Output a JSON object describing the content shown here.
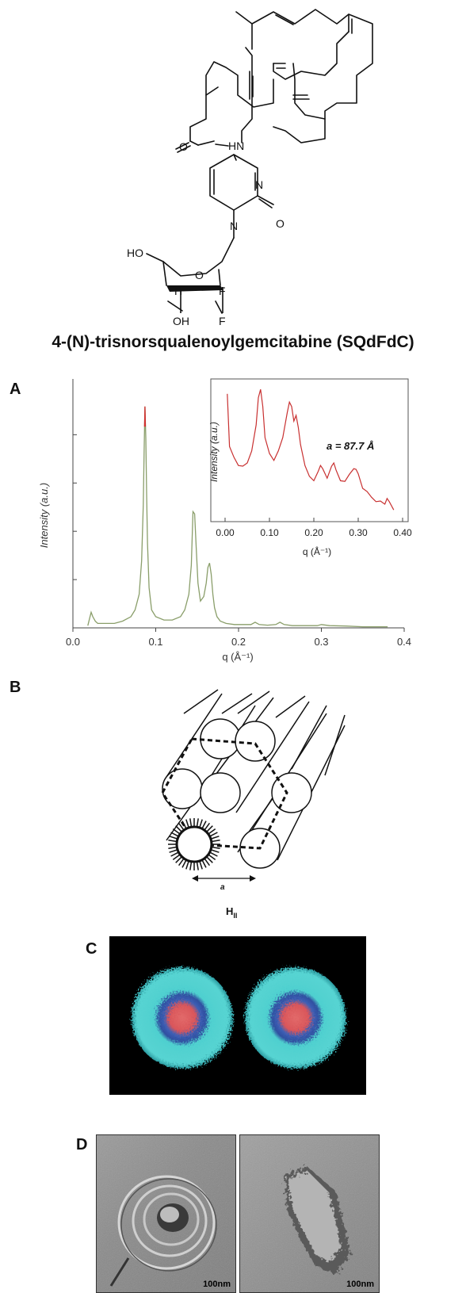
{
  "structure": {
    "labels": {
      "amide_o": "O",
      "nh": "HN",
      "n3": "N",
      "o2": "O",
      "n1": "N",
      "ho": "HO",
      "ring_o": "O",
      "h": "H",
      "f1": "F",
      "oh": "OH",
      "f2": "F"
    },
    "compound_name": "4-(N)-trisnorsqualenoylgemcitabine (SQdFdC)"
  },
  "panels": {
    "a": "A",
    "b": "B",
    "c": "C",
    "d": "D"
  },
  "chart_data": [
    {
      "type": "line",
      "name": "main-saxs",
      "xlabel": "q (Å⁻¹)",
      "ylabel": "Intensity (a.u.)",
      "xlim": [
        0,
        0.4
      ],
      "ylim": [
        0,
        1
      ],
      "xticks": [
        "0.0",
        "0.1",
        "0.2",
        "0.3",
        "0.4"
      ],
      "x": [
        0.018,
        0.02,
        0.022,
        0.024,
        0.027,
        0.03,
        0.04,
        0.05,
        0.06,
        0.07,
        0.075,
        0.08,
        0.083,
        0.085,
        0.086,
        0.087,
        0.088,
        0.089,
        0.09,
        0.092,
        0.095,
        0.1,
        0.11,
        0.12,
        0.13,
        0.135,
        0.14,
        0.143,
        0.145,
        0.147,
        0.149,
        0.151,
        0.154,
        0.158,
        0.161,
        0.163,
        0.165,
        0.167,
        0.169,
        0.171,
        0.174,
        0.178,
        0.185,
        0.195,
        0.205,
        0.215,
        0.22,
        0.225,
        0.235,
        0.245,
        0.25,
        0.255,
        0.265,
        0.28,
        0.295,
        0.3,
        0.31,
        0.33,
        0.35,
        0.38
      ],
      "y": [
        0.01,
        0.04,
        0.07,
        0.05,
        0.03,
        0.02,
        0.02,
        0.02,
        0.03,
        0.05,
        0.08,
        0.15,
        0.3,
        0.55,
        0.8,
        0.99,
        0.85,
        0.6,
        0.38,
        0.18,
        0.08,
        0.05,
        0.035,
        0.035,
        0.05,
        0.08,
        0.15,
        0.28,
        0.52,
        0.51,
        0.35,
        0.2,
        0.12,
        0.14,
        0.2,
        0.27,
        0.29,
        0.24,
        0.15,
        0.09,
        0.05,
        0.03,
        0.02,
        0.015,
        0.015,
        0.015,
        0.025,
        0.015,
        0.012,
        0.015,
        0.025,
        0.015,
        0.01,
        0.01,
        0.01,
        0.015,
        0.01,
        0.008,
        0.005,
        0.005
      ]
    },
    {
      "type": "line",
      "name": "inset-saxs",
      "xlabel": "q (Å⁻¹)",
      "ylabel": "Intensity (a.u.)",
      "annotation": "a = 87.7 Å",
      "xlim": [
        0,
        0.4
      ],
      "ylim": [
        0,
        1
      ],
      "xticks": [
        "0.00",
        "0.10",
        "0.20",
        "0.30",
        "0.40"
      ],
      "x": [
        0.005,
        0.01,
        0.02,
        0.03,
        0.04,
        0.05,
        0.06,
        0.07,
        0.075,
        0.08,
        0.085,
        0.09,
        0.1,
        0.11,
        0.12,
        0.13,
        0.14,
        0.145,
        0.15,
        0.155,
        0.16,
        0.165,
        0.17,
        0.18,
        0.19,
        0.2,
        0.21,
        0.215,
        0.22,
        0.23,
        0.24,
        0.245,
        0.25,
        0.26,
        0.27,
        0.28,
        0.29,
        0.295,
        0.3,
        0.31,
        0.32,
        0.33,
        0.34,
        0.35,
        0.36,
        0.365,
        0.37,
        0.38
      ],
      "y": [
        0.95,
        0.55,
        0.45,
        0.4,
        0.38,
        0.42,
        0.5,
        0.72,
        0.92,
        1.0,
        0.85,
        0.62,
        0.48,
        0.44,
        0.5,
        0.62,
        0.8,
        0.9,
        0.85,
        0.75,
        0.78,
        0.7,
        0.55,
        0.4,
        0.3,
        0.28,
        0.34,
        0.4,
        0.36,
        0.3,
        0.38,
        0.42,
        0.35,
        0.28,
        0.26,
        0.33,
        0.36,
        0.37,
        0.32,
        0.22,
        0.18,
        0.15,
        0.1,
        0.12,
        0.08,
        0.14,
        0.1,
        0.05
      ]
    }
  ],
  "schematic": {
    "lattice_label": "a",
    "phase_main": "H",
    "phase_sub": "II"
  },
  "sem": {
    "left_scale": "100nm",
    "right_scale": "100nm"
  },
  "colors": {
    "main_line": "#8a9e6a",
    "main_peak": "#d23030",
    "inset_line": "#c83030",
    "sphere_outer": "#4fd0cf",
    "sphere_mid": "#3e5fb5",
    "sphere_core": "#d9565a"
  }
}
